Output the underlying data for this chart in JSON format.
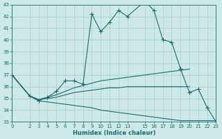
{
  "xlabel": "Humidex (Indice chaleur)",
  "bg_color": "#cce8e8",
  "grid_color": "#aacccc",
  "line_color": "#1a6b6b",
  "xlim": [
    0,
    23
  ],
  "ylim": [
    33,
    43
  ],
  "xticks": [
    0,
    2,
    3,
    4,
    5,
    6,
    7,
    8,
    9,
    10,
    11,
    12,
    13,
    15,
    16,
    17,
    18,
    19,
    20,
    21,
    22,
    23
  ],
  "yticks": [
    33,
    34,
    35,
    36,
    37,
    38,
    39,
    40,
    41,
    42,
    43
  ],
  "line1_x": [
    0,
    2,
    3,
    4,
    5,
    6,
    7,
    8,
    9,
    10,
    11,
    12,
    13,
    15,
    16,
    17,
    18,
    19
  ],
  "line1_y": [
    37.0,
    35.2,
    34.8,
    35.1,
    35.6,
    36.5,
    36.5,
    36.2,
    42.2,
    40.7,
    41.5,
    42.5,
    42.0,
    43.3,
    42.5,
    40.0,
    39.8,
    37.5
  ],
  "line2_x": [
    0,
    2,
    3,
    4,
    5,
    6,
    7,
    8,
    9,
    10,
    11,
    12,
    13,
    15,
    16,
    17,
    18,
    19,
    20
  ],
  "line2_y": [
    37.0,
    35.2,
    34.9,
    35.1,
    35.3,
    35.6,
    35.9,
    36.1,
    36.3,
    36.5,
    36.6,
    36.7,
    36.8,
    37.0,
    37.1,
    37.2,
    37.3,
    37.4,
    37.5
  ],
  "line3_x": [
    0,
    2,
    3,
    4,
    5,
    6,
    7,
    8,
    9,
    10,
    11,
    12,
    13,
    15,
    16,
    17,
    18,
    19,
    20
  ],
  "line3_y": [
    37.0,
    35.2,
    34.9,
    35.0,
    35.1,
    35.3,
    35.5,
    35.6,
    35.7,
    35.8,
    35.9,
    35.9,
    36.0,
    36.0,
    36.0,
    36.0,
    36.0,
    36.0,
    36.0
  ],
  "line4_x": [
    0,
    2,
    3,
    4,
    5,
    6,
    7,
    8,
    9,
    10,
    11,
    12,
    13,
    15,
    16,
    17,
    18,
    19,
    20,
    21,
    22,
    23
  ],
  "line4_y": [
    37.0,
    35.2,
    34.8,
    34.7,
    34.6,
    34.5,
    34.4,
    34.3,
    34.2,
    34.0,
    33.9,
    33.8,
    33.7,
    33.5,
    33.4,
    33.3,
    33.2,
    33.1,
    33.1,
    33.1,
    33.1,
    33.1
  ],
  "line5_x": [
    19,
    20,
    21,
    22,
    23
  ],
  "line5_y": [
    37.5,
    35.5,
    35.8,
    34.2,
    33.0
  ]
}
